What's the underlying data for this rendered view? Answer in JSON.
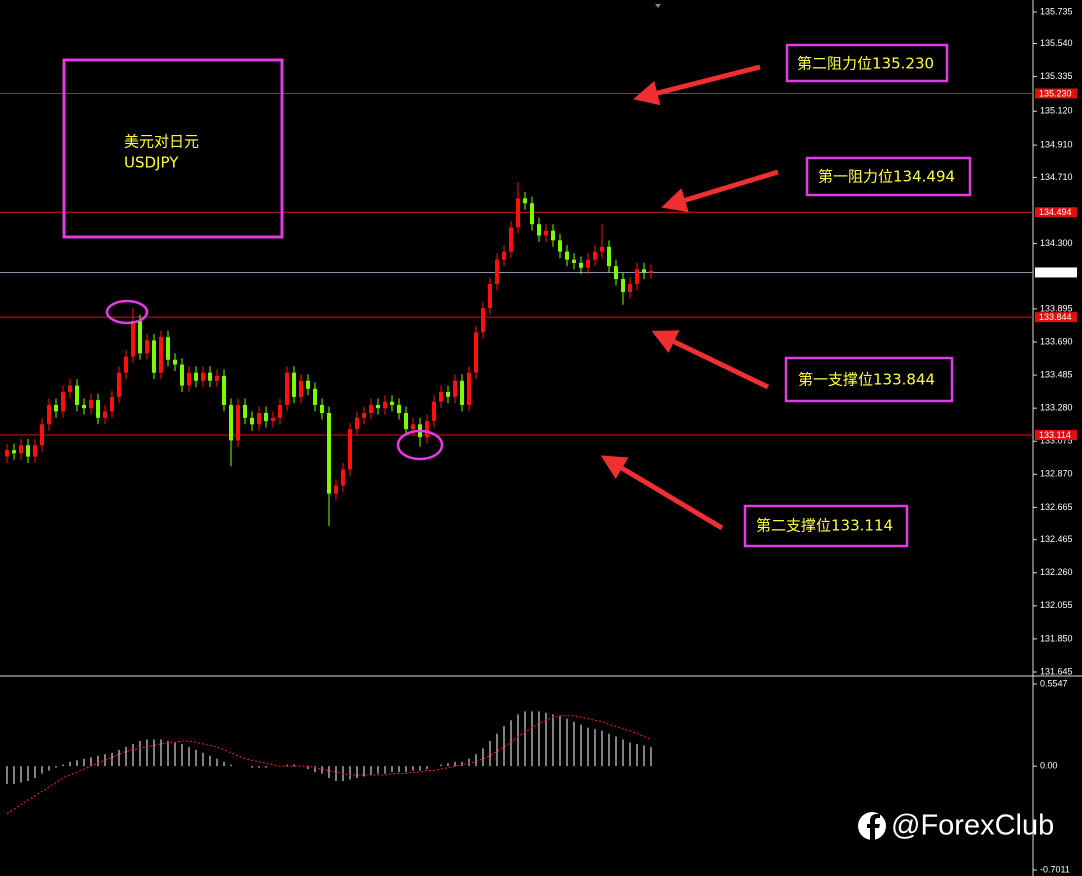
{
  "chart_data": [
    {
      "type": "candlestick",
      "open": [
        132.98,
        133.02,
        133.0,
        133.05,
        132.98,
        133.05,
        133.18,
        133.3,
        133.26,
        133.38,
        133.42,
        133.3,
        133.28,
        133.33,
        133.22,
        133.26,
        133.35,
        133.5,
        133.6,
        133.82,
        133.62,
        133.7,
        133.5,
        133.72,
        133.58,
        133.55,
        133.42,
        133.5,
        133.45,
        133.5,
        133.45,
        133.48,
        133.3,
        133.08,
        133.3,
        133.22,
        133.18,
        133.25,
        133.2,
        133.22,
        133.3,
        133.5,
        133.35,
        133.45,
        133.4,
        133.3,
        133.25,
        132.75,
        132.8,
        132.9,
        133.15,
        133.22,
        133.25,
        133.3,
        133.28,
        133.32,
        133.3,
        133.25,
        133.15,
        133.18,
        133.1,
        133.2,
        133.32,
        133.38,
        133.35,
        133.45,
        133.3,
        133.5,
        133.75,
        133.9,
        134.05,
        134.2,
        134.25,
        134.4,
        134.58,
        134.55,
        134.42,
        134.35,
        134.38,
        134.32,
        134.25,
        134.2,
        134.18,
        134.15,
        134.2,
        134.25,
        134.28,
        134.16,
        134.08,
        134.0,
        134.05,
        134.14,
        134.12
      ],
      "high": [
        133.06,
        133.06,
        133.09,
        133.09,
        133.09,
        133.22,
        133.34,
        133.34,
        133.42,
        133.46,
        133.46,
        133.34,
        133.37,
        133.37,
        133.3,
        133.39,
        133.54,
        133.64,
        133.9,
        133.86,
        133.74,
        133.74,
        133.76,
        133.76,
        133.62,
        133.59,
        133.54,
        133.54,
        133.54,
        133.54,
        133.52,
        133.52,
        133.34,
        133.34,
        133.34,
        133.26,
        133.29,
        133.29,
        133.26,
        133.34,
        133.54,
        133.54,
        133.49,
        133.49,
        133.44,
        133.34,
        133.29,
        132.84,
        132.94,
        133.19,
        133.26,
        133.29,
        133.34,
        133.34,
        133.36,
        133.36,
        133.34,
        133.29,
        133.22,
        133.22,
        133.24,
        133.36,
        133.42,
        133.42,
        133.49,
        133.49,
        133.54,
        133.79,
        133.94,
        134.09,
        134.24,
        134.29,
        134.44,
        134.68,
        134.62,
        134.59,
        134.46,
        134.42,
        134.42,
        134.36,
        134.29,
        134.24,
        134.22,
        134.24,
        134.29,
        134.42,
        134.32,
        134.2,
        134.12,
        134.09,
        134.18,
        134.18,
        134.17
      ],
      "low": [
        132.94,
        132.96,
        132.96,
        132.94,
        132.94,
        133.01,
        133.14,
        133.22,
        133.22,
        133.34,
        133.26,
        133.24,
        133.24,
        133.18,
        133.18,
        133.22,
        133.31,
        133.46,
        133.56,
        133.58,
        133.58,
        133.46,
        133.46,
        133.54,
        133.51,
        133.38,
        133.38,
        133.41,
        133.41,
        133.41,
        133.41,
        133.26,
        132.92,
        133.04,
        133.18,
        133.14,
        133.14,
        133.16,
        133.16,
        133.18,
        133.26,
        133.31,
        133.31,
        133.36,
        133.26,
        133.21,
        132.55,
        132.71,
        132.76,
        132.86,
        133.11,
        133.18,
        133.21,
        133.24,
        133.24,
        133.26,
        133.21,
        133.11,
        133.11,
        133.04,
        133.06,
        133.16,
        133.28,
        133.31,
        133.31,
        133.26,
        133.26,
        133.46,
        133.71,
        133.86,
        134.01,
        134.16,
        134.21,
        134.36,
        134.51,
        134.38,
        134.31,
        134.31,
        134.28,
        134.21,
        134.16,
        134.14,
        134.11,
        134.11,
        134.16,
        134.21,
        134.12,
        134.04,
        133.92,
        133.96,
        134.01,
        134.08,
        134.08
      ],
      "close": [
        133.02,
        133.0,
        133.05,
        132.98,
        133.05,
        133.18,
        133.3,
        133.26,
        133.38,
        133.42,
        133.3,
        133.28,
        133.33,
        133.22,
        133.26,
        133.35,
        133.5,
        133.6,
        133.82,
        133.62,
        133.7,
        133.5,
        133.72,
        133.58,
        133.55,
        133.42,
        133.5,
        133.45,
        133.5,
        133.45,
        133.48,
        133.3,
        133.08,
        133.3,
        133.22,
        133.18,
        133.25,
        133.2,
        133.22,
        133.3,
        133.5,
        133.35,
        133.45,
        133.4,
        133.3,
        133.25,
        132.75,
        132.8,
        132.9,
        133.15,
        133.22,
        133.25,
        133.3,
        133.28,
        133.32,
        133.3,
        133.25,
        133.15,
        133.18,
        133.1,
        133.2,
        133.32,
        133.38,
        133.35,
        133.45,
        133.3,
        133.5,
        133.75,
        133.9,
        134.05,
        134.2,
        134.25,
        134.4,
        134.58,
        134.55,
        134.42,
        134.35,
        134.38,
        134.32,
        134.25,
        134.2,
        134.18,
        134.15,
        134.2,
        134.25,
        134.28,
        134.16,
        134.08,
        134.0,
        134.05,
        134.14,
        134.12,
        134.13
      ],
      "up_color": "#ff1010",
      "down_color": "#7cfc00",
      "ylim": [
        131.645,
        135.735
      ],
      "yticks": [
        135.735,
        {
          "value": 135.54,
          "label": "135.540"
        },
        135.335,
        {
          "value": 135.12,
          "label": "135.120"
        },
        {
          "value": 134.91,
          "label": "134.910"
        },
        {
          "value": 134.71,
          "label": "134.710"
        },
        {
          "value": 134.3,
          "label": "134.300"
        },
        133.895,
        {
          "value": 133.69,
          "label": "133.690"
        },
        133.485,
        {
          "value": 133.28,
          "label": "133.280"
        },
        133.075,
        {
          "value": 132.87,
          "label": "132.870"
        },
        132.665,
        132.465,
        {
          "value": 132.26,
          "label": "132.260"
        },
        132.055,
        {
          "value": 131.85,
          "label": "131.850"
        },
        131.645
      ],
      "levels": [
        {
          "value": 135.23,
          "label": "135.230"
        },
        134.494,
        134.121,
        133.844,
        133.114
      ],
      "level_colors": [
        "#e01010",
        "#e01010",
        "#8a97a8",
        "#e01010",
        "#e01010"
      ]
    },
    {
      "type": "macd",
      "histogram": [
        -0.12,
        -0.12,
        -0.11,
        -0.1,
        -0.08,
        -0.05,
        -0.03,
        -0.01,
        0.01,
        0.03,
        0.04,
        0.05,
        0.06,
        0.07,
        0.08,
        0.09,
        0.11,
        0.13,
        0.15,
        0.17,
        0.18,
        0.18,
        0.18,
        0.17,
        0.16,
        0.15,
        0.13,
        0.11,
        0.09,
        0.07,
        0.05,
        0.03,
        0.01,
        0.0,
        0.0,
        -0.01,
        -0.01,
        -0.01,
        0.0,
        0.0,
        0.01,
        0.01,
        0.0,
        -0.02,
        -0.04,
        -0.05,
        -0.08,
        -0.1,
        -0.1,
        -0.09,
        -0.08,
        -0.07,
        -0.06,
        -0.05,
        -0.05,
        -0.04,
        -0.04,
        -0.04,
        -0.03,
        -0.03,
        -0.02,
        0.0,
        0.01,
        0.02,
        0.03,
        0.03,
        0.05,
        0.08,
        0.12,
        0.17,
        0.22,
        0.27,
        0.31,
        0.35,
        0.37,
        0.37,
        0.37,
        0.36,
        0.35,
        0.34,
        0.32,
        0.3,
        0.28,
        0.26,
        0.25,
        0.24,
        0.22,
        0.2,
        0.18,
        0.16,
        0.15,
        0.14,
        0.13
      ],
      "signal": [
        -0.32,
        -0.29,
        -0.26,
        -0.23,
        -0.2,
        -0.17,
        -0.14,
        -0.11,
        -0.08,
        -0.06,
        -0.04,
        -0.02,
        0.0,
        0.02,
        0.04,
        0.06,
        0.08,
        0.1,
        0.11,
        0.12,
        0.13,
        0.14,
        0.15,
        0.16,
        0.16,
        0.17,
        0.17,
        0.16,
        0.15,
        0.14,
        0.13,
        0.11,
        0.09,
        0.07,
        0.05,
        0.04,
        0.03,
        0.02,
        0.01,
        0.0,
        0.0,
        0.0,
        0.0,
        0.0,
        -0.01,
        -0.02,
        -0.03,
        -0.04,
        -0.05,
        -0.06,
        -0.06,
        -0.06,
        -0.06,
        -0.06,
        -0.06,
        -0.05,
        -0.05,
        -0.05,
        -0.04,
        -0.04,
        -0.03,
        -0.03,
        -0.02,
        -0.01,
        0.0,
        0.01,
        0.02,
        0.03,
        0.05,
        0.07,
        0.1,
        0.13,
        0.16,
        0.2,
        0.23,
        0.26,
        0.29,
        0.31,
        0.33,
        0.34,
        0.34,
        0.34,
        0.33,
        0.32,
        0.31,
        0.3,
        0.28,
        0.27,
        0.25,
        0.24,
        0.22,
        0.2,
        0.18
      ],
      "histogram_color": "#ffffff",
      "signal_color": "#ff2020",
      "ylim": [
        -0.7011,
        0.5547
      ],
      "yticks": [
        0.5547,
        {
          "value": 0,
          "label": "0.00"
        },
        -0.7011
      ]
    }
  ],
  "symbol_box": {
    "name_cn": "美元对日元",
    "name": "USDJPY"
  },
  "annotations": [
    "第二阻力位135.230",
    "第一阻力位134.494",
    "第一支撑位133.844",
    "第二支撑位133.114"
  ],
  "watermark": "@ForexClub"
}
